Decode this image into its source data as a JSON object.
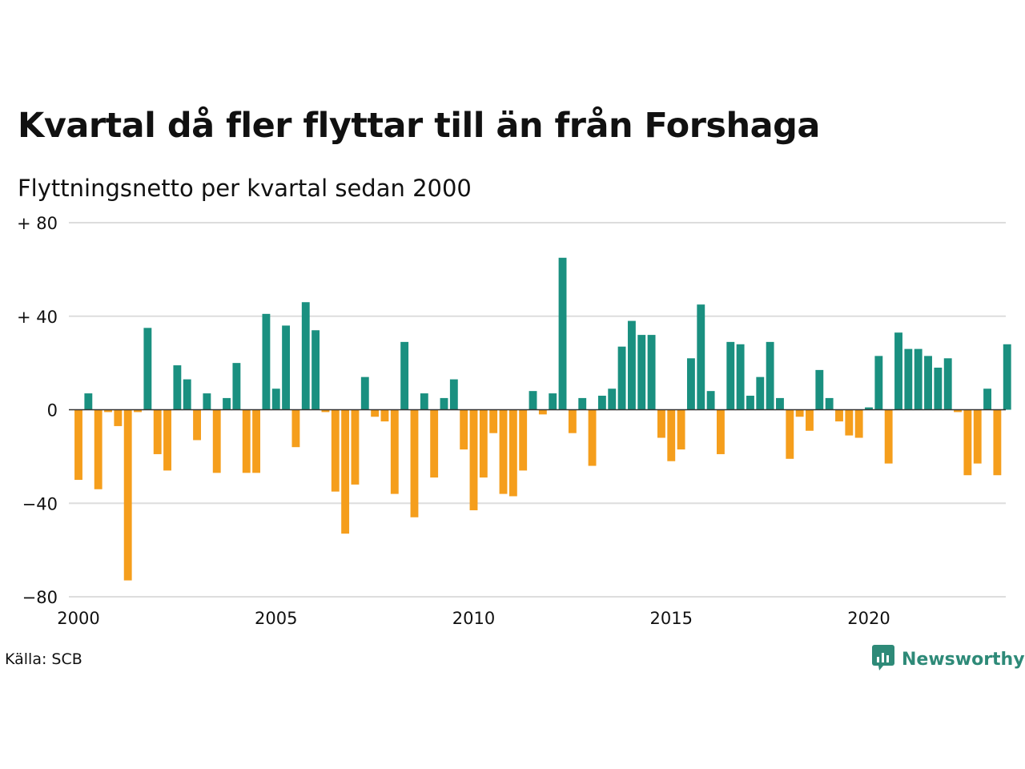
{
  "header": {
    "title": "Kvartal då fler flyttar till än från Forshaga",
    "subtitle": "Flyttningsnetto per kvartal sedan 2000"
  },
  "footer": {
    "source": "Källa: SCB",
    "brand": "Newsworthy",
    "brand_icon": "newsworthy-logo-icon"
  },
  "colors": {
    "positive": "#1a9080",
    "negative": "#f59e1c",
    "grid": "#dddddd",
    "axis": "#333333",
    "brand": "#2e8a78"
  },
  "chart_data": {
    "type": "bar",
    "title": "Kvartal då fler flyttar till än från Forshaga",
    "subtitle": "Flyttningsnetto per kvartal sedan 2000",
    "xlabel": "",
    "ylabel": "",
    "ylim": [
      -80,
      80
    ],
    "y_ticks": [
      80,
      40,
      0,
      -40,
      -80
    ],
    "y_tick_labels": [
      "+ 80",
      "+ 40",
      "0",
      "−40",
      "−80"
    ],
    "x_ticks": [
      2000,
      2005,
      2010,
      2015,
      2020
    ],
    "x_tick_labels": [
      "2000",
      "2005",
      "2010",
      "2015",
      "2020"
    ],
    "grid": true,
    "legend": "none",
    "x_start": 2000,
    "x_end": 2024,
    "values": [
      -30,
      7,
      -34,
      -1,
      -7,
      -73,
      -1,
      35,
      -19,
      -26,
      19,
      13,
      -13,
      7,
      -27,
      5,
      20,
      -27,
      -27,
      41,
      9,
      36,
      -16,
      46,
      34,
      -1,
      -35,
      -53,
      -32,
      14,
      -3,
      -5,
      -36,
      29,
      -46,
      7,
      -29,
      5,
      13,
      -17,
      -43,
      -29,
      -10,
      -36,
      -37,
      -26,
      8,
      -2,
      7,
      65,
      -10,
      5,
      -24,
      6,
      9,
      27,
      38,
      32,
      32,
      -12,
      -22,
      -17,
      22,
      45,
      8,
      -19,
      29,
      28,
      6,
      14,
      29,
      5,
      -21,
      -3,
      -9,
      17,
      5,
      -5,
      -11,
      -12,
      1,
      23,
      -23,
      33,
      26,
      26,
      23,
      18,
      22,
      -1,
      -28,
      -23,
      9,
      -28,
      28
    ]
  }
}
